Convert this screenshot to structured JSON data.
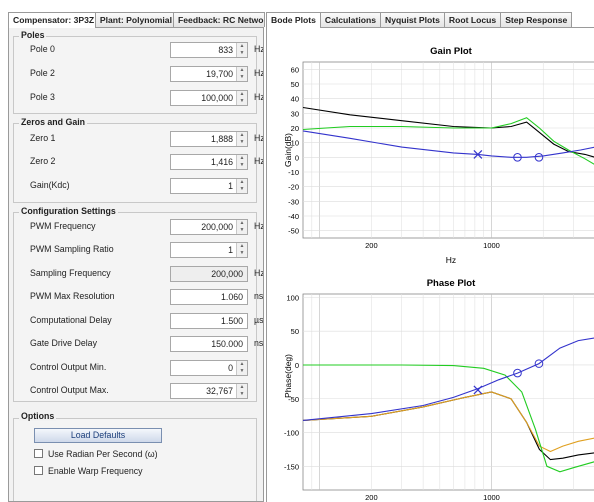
{
  "left_tabs": [
    "Compensator: 3P3Z",
    "Plant: Polynomial",
    "Feedback: RC Netwo"
  ],
  "right_tabs": [
    "Bode Plots",
    "Calculations",
    "Nyquist Plots",
    "Root Locus",
    "Step Response"
  ],
  "poles": {
    "title": "Poles",
    "rows": [
      {
        "label": "Pole 0",
        "value": "833",
        "unit": "Hz"
      },
      {
        "label": "Pole 2",
        "value": "19,700",
        "unit": "Hz"
      },
      {
        "label": "Pole 3",
        "value": "100,000",
        "unit": "Hz"
      }
    ]
  },
  "zeros": {
    "title": "Zeros and Gain",
    "rows": [
      {
        "label": "Zero 1",
        "value": "1,888",
        "unit": "Hz"
      },
      {
        "label": "Zero 2",
        "value": "1,416",
        "unit": "Hz"
      },
      {
        "label": "Gain(Kdc)",
        "value": "1",
        "unit": ""
      }
    ]
  },
  "config": {
    "title": "Configuration Settings",
    "rows": [
      {
        "label": "PWM Frequency",
        "value": "200,000",
        "unit": "Hz"
      },
      {
        "label": "PWM Sampling Ratio",
        "value": "1",
        "unit": ""
      },
      {
        "label": "Sampling Frequency",
        "value": "200,000",
        "unit": "Hz"
      },
      {
        "label": "PWM Max Resolution",
        "value": "1.060",
        "unit": "ns"
      },
      {
        "label": "Computational Delay",
        "value": "1.500",
        "unit": "µs"
      },
      {
        "label": "Gate Drive Delay",
        "value": "150.000",
        "unit": "ns"
      },
      {
        "label": "Control Output Min.",
        "value": "0",
        "unit": ""
      },
      {
        "label": "Control Output Max.",
        "value": "32,767",
        "unit": ""
      }
    ]
  },
  "options": {
    "title": "Options",
    "load_defaults": "Load Defaults",
    "use_radian": "Use Radian Per Second (ω)",
    "enable_warp": "Enable Warp Frequency"
  },
  "chart_data": [
    {
      "type": "line",
      "title": "Gain Plot",
      "xlabel": "Hz",
      "ylabel": "Gain(dB)",
      "xscale": "log",
      "xlim": [
        80,
        4000
      ],
      "ylim": [
        -55,
        65
      ],
      "xticks": [
        200,
        1000
      ],
      "yticks": [
        60,
        50,
        40,
        30,
        20,
        10,
        0,
        -10,
        -20,
        -30,
        -40,
        -50
      ],
      "grid": true,
      "series": [
        {
          "color": "#000000",
          "x": [
            80,
            150,
            300,
            600,
            1000,
            1300,
            1600,
            1900,
            2300,
            2800,
            3500,
            4000
          ],
          "y": [
            34,
            29,
            25,
            21,
            20,
            21,
            24,
            17,
            9,
            4,
            2,
            0
          ]
        },
        {
          "color": "#22cc22",
          "x": [
            80,
            150,
            300,
            600,
            1000,
            1300,
            1600,
            1900,
            2300,
            2800,
            3500,
            4000
          ],
          "y": [
            19,
            21,
            21,
            20,
            20,
            23,
            27,
            20,
            11,
            5,
            -1,
            -5
          ]
        },
        {
          "color": "#3333cc",
          "x": [
            80,
            150,
            300,
            600,
            833,
            1000,
            1300,
            1600,
            2000,
            2600,
            3300,
            4000
          ],
          "y": [
            18,
            13,
            7,
            3,
            2,
            1,
            0,
            0,
            1,
            3,
            5,
            7
          ]
        }
      ],
      "poles_markers": [
        {
          "x": 833,
          "y": 2
        }
      ],
      "zeros_markers": [
        {
          "x": 1416,
          "y": 0
        },
        {
          "x": 1888,
          "y": 0
        }
      ]
    },
    {
      "type": "line",
      "title": "Phase Plot",
      "xlabel": "",
      "ylabel": "Phase(deg)",
      "xscale": "log",
      "xlim": [
        80,
        4000
      ],
      "ylim": [
        -185,
        105
      ],
      "xticks": [
        200,
        1000
      ],
      "yticks": [
        100,
        50,
        0,
        -50,
        -100,
        -150
      ],
      "grid": true,
      "series": [
        {
          "color": "#000000",
          "x": [
            80,
            200,
            400,
            700,
            1000,
            1300,
            1600,
            1900,
            2200,
            2600,
            3200,
            4000
          ],
          "y": [
            -82,
            -76,
            -62,
            -48,
            -40,
            -50,
            -85,
            -125,
            -140,
            -138,
            -133,
            -130
          ]
        },
        {
          "color": "#e0a020",
          "x": [
            80,
            200,
            400,
            700,
            1000,
            1300,
            1600,
            1900,
            2200,
            2600,
            3200,
            4000
          ],
          "y": [
            -82,
            -76,
            -62,
            -48,
            -40,
            -50,
            -85,
            -120,
            -128,
            -120,
            -113,
            -108
          ]
        },
        {
          "color": "#22cc22",
          "x": [
            80,
            300,
            600,
            900,
            1200,
            1500,
            1800,
            2100,
            2500,
            3000,
            4000
          ],
          "y": [
            0,
            0,
            -1,
            -5,
            -15,
            -40,
            -95,
            -150,
            -158,
            -152,
            -143
          ]
        },
        {
          "color": "#3333cc",
          "x": [
            80,
            200,
            400,
            600,
            833,
            1100,
            1416,
            1888,
            2500,
            3200,
            4000
          ],
          "y": [
            -82,
            -72,
            -60,
            -48,
            -35,
            -22,
            -12,
            2,
            25,
            36,
            40
          ]
        }
      ],
      "poles_markers": [
        {
          "x": 833,
          "y": -37
        }
      ],
      "zeros_markers": [
        {
          "x": 1416,
          "y": -12
        },
        {
          "x": 1888,
          "y": 2
        }
      ]
    }
  ]
}
